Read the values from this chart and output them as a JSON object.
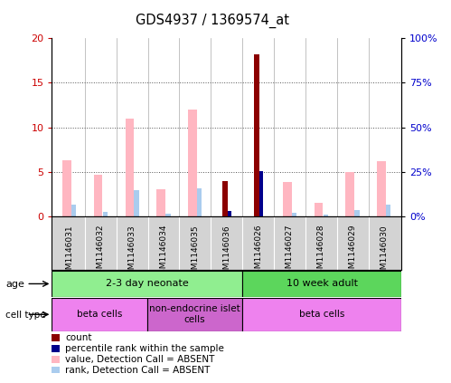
{
  "title": "GDS4937 / 1369574_at",
  "samples": [
    "GSM1146031",
    "GSM1146032",
    "GSM1146033",
    "GSM1146034",
    "GSM1146035",
    "GSM1146036",
    "GSM1146026",
    "GSM1146027",
    "GSM1146028",
    "GSM1146029",
    "GSM1146030"
  ],
  "count_values": [
    0,
    0,
    0,
    0,
    0,
    4.0,
    18.2,
    0,
    0,
    0,
    0
  ],
  "rank_values": [
    0,
    0,
    0,
    0,
    0,
    0.6,
    5.1,
    0,
    0,
    0,
    0
  ],
  "absent_value_bars": [
    6.3,
    4.7,
    11.0,
    3.0,
    12.0,
    0,
    0,
    3.9,
    1.5,
    5.0,
    6.2
  ],
  "absent_rank_bars": [
    1.3,
    0.5,
    2.9,
    0.3,
    3.2,
    0,
    0,
    0.4,
    0.2,
    0.7,
    1.3
  ],
  "ylim": [
    0,
    20
  ],
  "y2lim": [
    0,
    100
  ],
  "yticks": [
    0,
    5,
    10,
    15,
    20
  ],
  "y2ticks": [
    0,
    25,
    50,
    75,
    100
  ],
  "age_groups": [
    {
      "label": "2-3 day neonate",
      "start": 0,
      "end": 6,
      "color": "#90EE90"
    },
    {
      "label": "10 week adult",
      "start": 6,
      "end": 11,
      "color": "#5CD65C"
    }
  ],
  "cell_type_groups": [
    {
      "label": "beta cells",
      "start": 0,
      "end": 3,
      "color": "#EE82EE"
    },
    {
      "label": "non-endocrine islet\ncells",
      "start": 3,
      "end": 6,
      "color": "#CC66CC"
    },
    {
      "label": "beta cells",
      "start": 6,
      "end": 11,
      "color": "#EE82EE"
    }
  ],
  "count_color": "#8B0000",
  "rank_color": "#00008B",
  "absent_value_color": "#FFB6C1",
  "absent_rank_color": "#AACCEE",
  "left_axis_color": "#CC0000",
  "right_axis_color": "#0000CC",
  "grid_color": "#555555",
  "bar_bg_color": "#D3D3D3",
  "plot_bg_color": "#FFFFFF"
}
